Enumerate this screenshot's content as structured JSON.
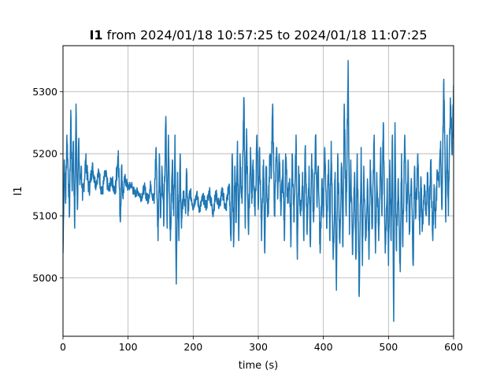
{
  "chart_data": {
    "type": "line",
    "title_bold": "I1",
    "title_rest": " from 2024/01/18 10:57:25 to 2024/01/18 11:07:25",
    "xlabel": "time (s)",
    "ylabel": "I1",
    "xlim": [
      0,
      600
    ],
    "ylim": [
      4906,
      5374
    ],
    "xticks": [
      0,
      100,
      200,
      300,
      400,
      500,
      600
    ],
    "yticks": [
      5000,
      5100,
      5200,
      5300
    ],
    "grid": true,
    "series": [
      {
        "color": "#1f77b4",
        "x": [
          0,
          2,
          4,
          6,
          8,
          10,
          12,
          14,
          16,
          18,
          20,
          22,
          24,
          26,
          28,
          30,
          35,
          40,
          45,
          50,
          55,
          60,
          65,
          70,
          75,
          80,
          85,
          88,
          90,
          92,
          95,
          100,
          105,
          110,
          115,
          120,
          125,
          130,
          135,
          140,
          143,
          146,
          148,
          150,
          152,
          155,
          158,
          160,
          162,
          165,
          168,
          170,
          172,
          174,
          176,
          178,
          180,
          182,
          185,
          188,
          190,
          192,
          195,
          200,
          205,
          210,
          215,
          220,
          225,
          230,
          235,
          240,
          245,
          250,
          255,
          258,
          260,
          262,
          264,
          266,
          268,
          270,
          272,
          275,
          278,
          280,
          282,
          285,
          288,
          290,
          292,
          295,
          298,
          300,
          302,
          305,
          308,
          310,
          312,
          315,
          318,
          320,
          322,
          325,
          328,
          330,
          332,
          335,
          338,
          340,
          342,
          345,
          348,
          350,
          352,
          355,
          358,
          360,
          362,
          365,
          368,
          370,
          372,
          375,
          378,
          380,
          382,
          385,
          388,
          390,
          392,
          395,
          398,
          400,
          402,
          405,
          408,
          410,
          412,
          415,
          418,
          420,
          422,
          425,
          428,
          430,
          432,
          435,
          438,
          440,
          442,
          445,
          448,
          450,
          452,
          455,
          458,
          460,
          462,
          465,
          468,
          470,
          472,
          475,
          478,
          480,
          482,
          485,
          488,
          490,
          492,
          495,
          498,
          500,
          502,
          504,
          506,
          508,
          510,
          512,
          515,
          518,
          520,
          522,
          525,
          528,
          530,
          532,
          535,
          538,
          540,
          542,
          545,
          548,
          550,
          552,
          555,
          558,
          560,
          562,
          565,
          568,
          570,
          572,
          575,
          578,
          580,
          582,
          585,
          588,
          590,
          592,
          595,
          598,
          600
        ],
        "y": [
          5040,
          5190,
          5120,
          5230,
          5170,
          5100,
          5270,
          5140,
          5220,
          5080,
          5280,
          5110,
          5220,
          5150,
          5180,
          5125,
          5190,
          5140,
          5180,
          5150,
          5170,
          5135,
          5170,
          5140,
          5160,
          5135,
          5205,
          5090,
          5180,
          5130,
          5160,
          5145,
          5150,
          5135,
          5140,
          5130,
          5145,
          5125,
          5150,
          5120,
          5210,
          5060,
          5200,
          5100,
          5180,
          5090,
          5260,
          5080,
          5230,
          5060,
          5190,
          5100,
          5230,
          4990,
          5170,
          5060,
          5200,
          5080,
          5140,
          5110,
          5170,
          5100,
          5140,
          5115,
          5135,
          5110,
          5130,
          5115,
          5140,
          5105,
          5135,
          5115,
          5140,
          5110,
          5150,
          5060,
          5200,
          5050,
          5180,
          5090,
          5220,
          5060,
          5200,
          5120,
          5290,
          5080,
          5240,
          5070,
          5210,
          5120,
          5190,
          5100,
          5230,
          5110,
          5210,
          5060,
          5190,
          5040,
          5180,
          5100,
          5200,
          5160,
          5280,
          5100,
          5210,
          5130,
          5200,
          5110,
          5190,
          5060,
          5200,
          5120,
          5160,
          5050,
          5200,
          5090,
          5230,
          5030,
          5180,
          5100,
          5170,
          5060,
          5210,
          5070,
          5180,
          5050,
          5200,
          5090,
          5230,
          5120,
          5180,
          5040,
          5160,
          5100,
          5210,
          5080,
          5190,
          5060,
          5220,
          5030,
          5170,
          4980,
          5200,
          5060,
          5180,
          5050,
          5280,
          5100,
          5350,
          5070,
          5190,
          5040,
          5170,
          5030,
          5200,
          4970,
          5210,
          5020,
          5180,
          5060,
          5150,
          5030,
          5190,
          5080,
          5230,
          5040,
          5170,
          5060,
          5210,
          5100,
          5250,
          5040,
          5160,
          5020,
          5190,
          5060,
          5230,
          4930,
          5250,
          5050,
          5160,
          5010,
          5200,
          5050,
          5230,
          5090,
          5190,
          5070,
          5160,
          5020,
          5180,
          5100,
          5200,
          5070,
          5160,
          5080,
          5150,
          5100,
          5170,
          5090,
          5190,
          5060,
          5150,
          5080,
          5170,
          5150,
          5220,
          5110,
          5320,
          5090,
          5230,
          5100,
          5290,
          5200,
          5310
        ]
      }
    ]
  }
}
